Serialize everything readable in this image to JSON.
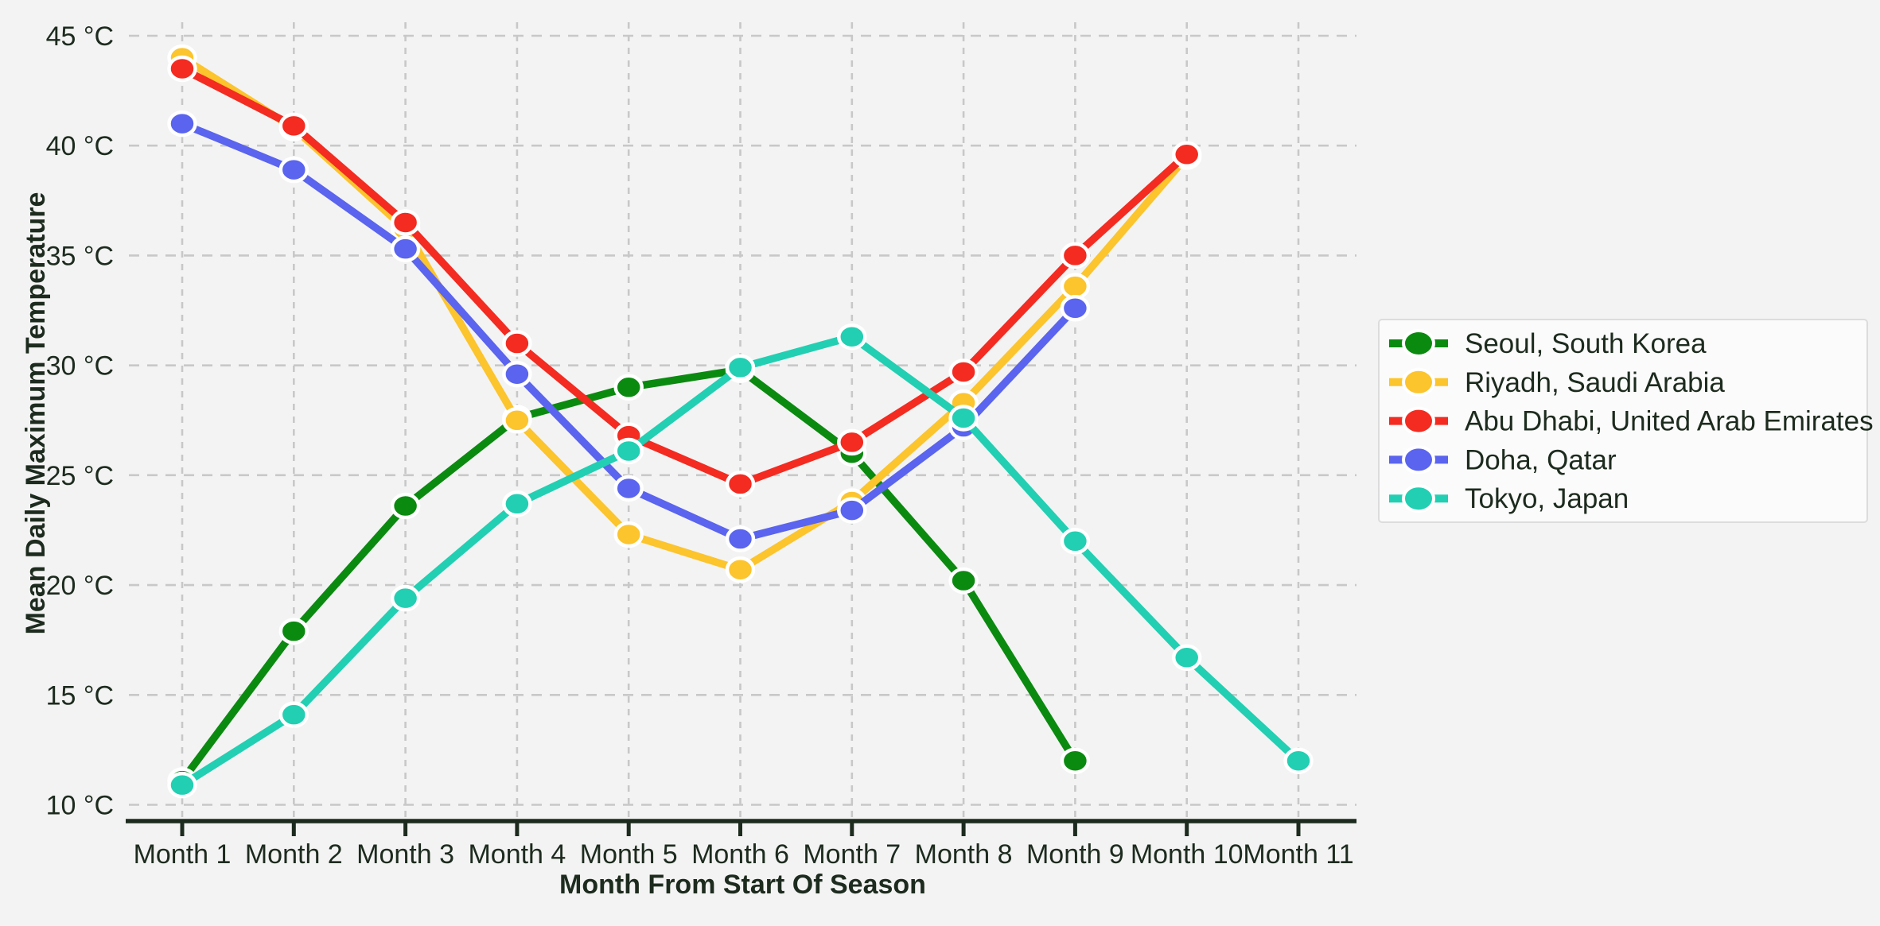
{
  "chart_data": {
    "type": "line",
    "title": "",
    "xlabel": "Month From Start Of Season",
    "ylabel": "Mean Daily Maximum Temperature",
    "categories": [
      "Month 1",
      "Month 2",
      "Month 3",
      "Month 4",
      "Month 5",
      "Month 6",
      "Month 7",
      "Month 8",
      "Month 9",
      "Month 10",
      "Month 11"
    ],
    "y_ticks": [
      45,
      40,
      35,
      30,
      25,
      20,
      15,
      10
    ],
    "y_tick_suffix": " °C",
    "ylim": [
      9.2,
      45.6
    ],
    "grid": true,
    "legend_position": "right",
    "series": [
      {
        "name": "Seoul, South Korea",
        "color": "#0b8a10",
        "values": [
          11.1,
          17.9,
          23.6,
          27.6,
          29.0,
          29.8,
          26.0,
          20.2,
          12.0,
          null,
          null
        ]
      },
      {
        "name": "Riyadh, Saudi Arabia",
        "color": "#fcc42d",
        "values": [
          44.0,
          40.8,
          36.2,
          27.5,
          22.3,
          20.7,
          23.8,
          28.3,
          33.6,
          39.5,
          null
        ]
      },
      {
        "name": "Abu Dhabi, United Arab Emirates",
        "color": "#f32b21",
        "values": [
          43.5,
          40.9,
          36.5,
          31.0,
          26.8,
          24.6,
          26.5,
          29.7,
          35.0,
          39.6,
          null
        ]
      },
      {
        "name": "Doha, Qatar",
        "color": "#5a64ee",
        "values": [
          41.0,
          38.9,
          35.3,
          29.6,
          24.4,
          22.1,
          23.4,
          27.2,
          32.6,
          null,
          null
        ]
      },
      {
        "name": "Tokyo, Japan",
        "color": "#22cfb2",
        "values": [
          10.9,
          14.1,
          19.4,
          23.7,
          26.1,
          29.9,
          31.3,
          27.6,
          22.0,
          16.7,
          12.0
        ]
      }
    ]
  },
  "style_colors": {
    "background": "#f3f3f3",
    "gridline": "#c8c8c8",
    "axis": "#1d2b1e",
    "text": "#1d2b1e",
    "legend_bg": "#fbfbfb",
    "legend_border": "#dcdcdc",
    "marker_outline": "#ffffff"
  }
}
